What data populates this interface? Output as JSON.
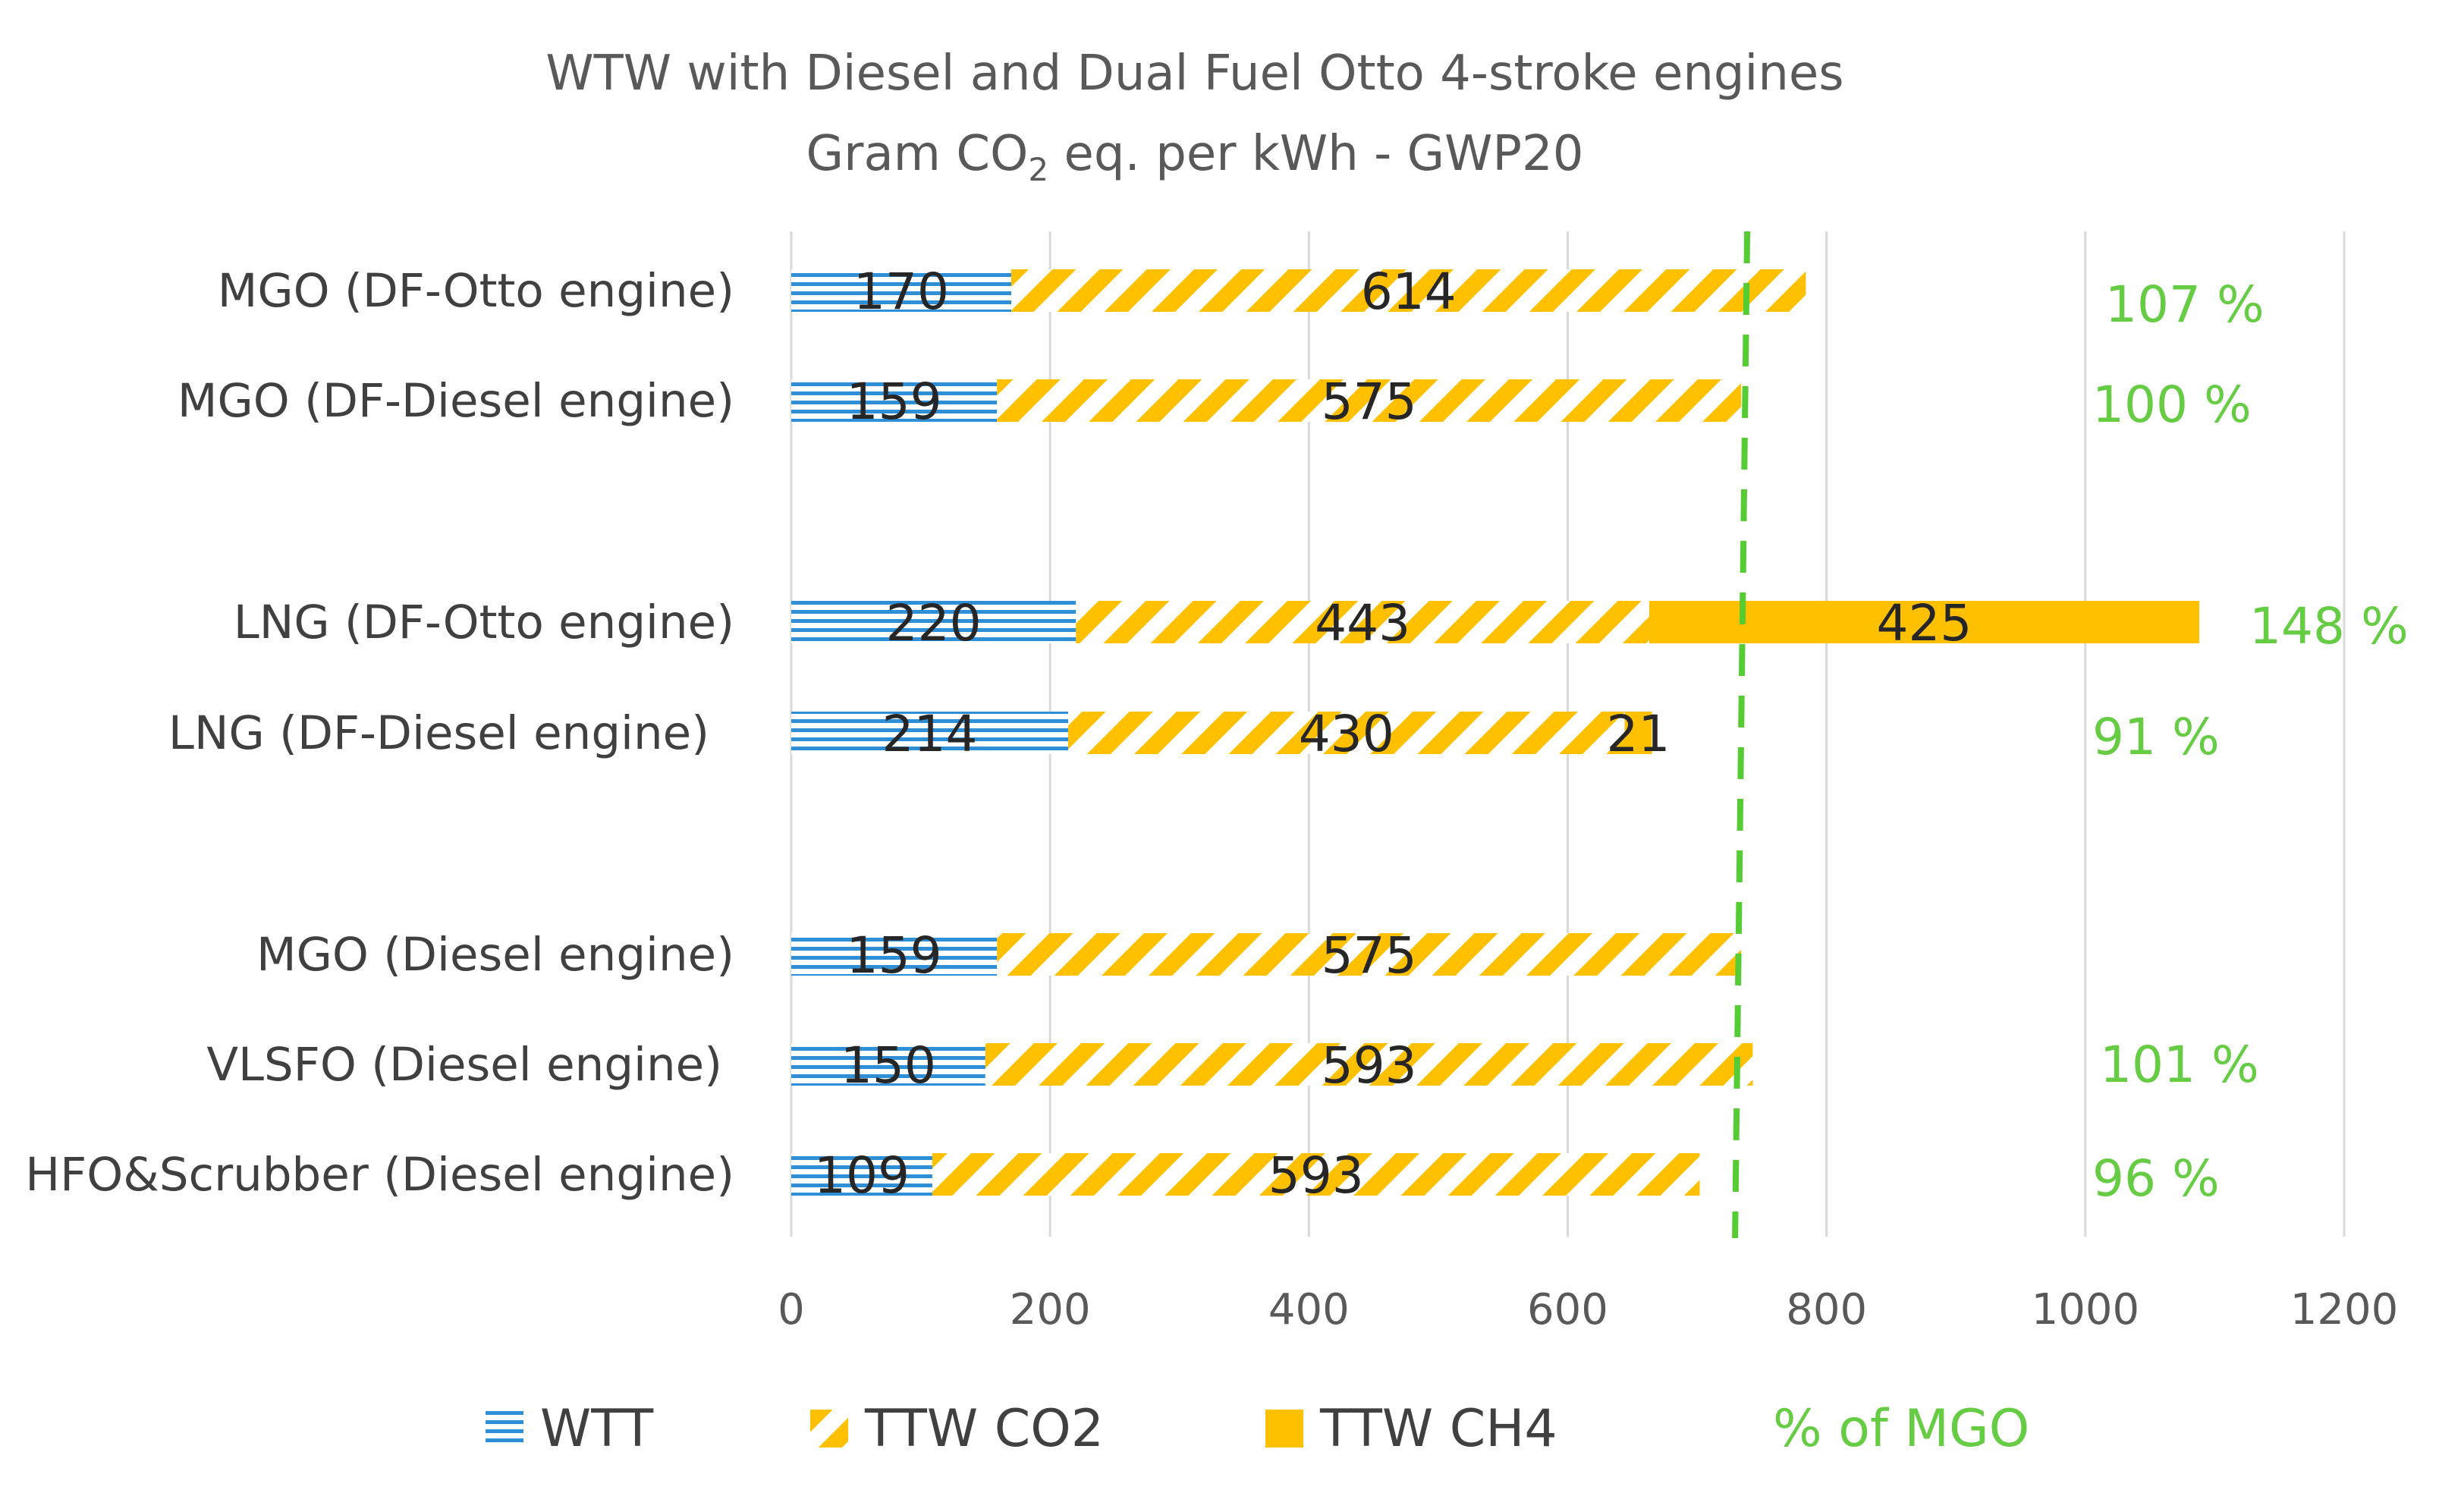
{
  "chart_data": {
    "type": "bar",
    "orientation": "horizontal",
    "stacked": true,
    "title": "WTW with Diesel and Dual Fuel Otto 4-stroke engines",
    "subtitle_prefix": "Gram CO",
    "subtitle_subscript": "2",
    "subtitle_suffix": " eq. per kWh - GWP20",
    "categories": [
      "MGO (DF-Otto engine)",
      "MGO (DF-Diesel engine)",
      "LNG (DF-Otto engine)",
      "LNG (DF-Diesel engine)",
      "MGO (Diesel engine)",
      "VLSFO (Diesel engine)",
      "HFO&Scrubber (Diesel engine)"
    ],
    "series": [
      {
        "name": "WTT",
        "values": [
          170,
          159,
          220,
          214,
          159,
          150,
          109
        ],
        "color": "#2e8fd6"
      },
      {
        "name": "TTW CO2",
        "values": [
          614,
          575,
          443,
          430,
          575,
          593,
          593
        ],
        "color": "#ffc000"
      },
      {
        "name": "TTW CH4",
        "values": [
          null,
          null,
          425,
          21,
          null,
          null,
          null
        ],
        "color": "#ffc000"
      }
    ],
    "percent_of_mgo": {
      "name": "% of MGO",
      "labels": [
        "107 %",
        "100 %",
        "148 %",
        "91 %",
        "",
        "101 %",
        "96 %"
      ],
      "color": "#66cc44"
    },
    "reference_line": {
      "value": 734,
      "color": "#55cc33",
      "style": "dashed"
    },
    "xlim": [
      0,
      1200
    ],
    "xticks": [
      "0",
      "200",
      "400",
      "600",
      "800",
      "1000",
      "1200"
    ],
    "grid": true,
    "legend_position": "bottom"
  }
}
